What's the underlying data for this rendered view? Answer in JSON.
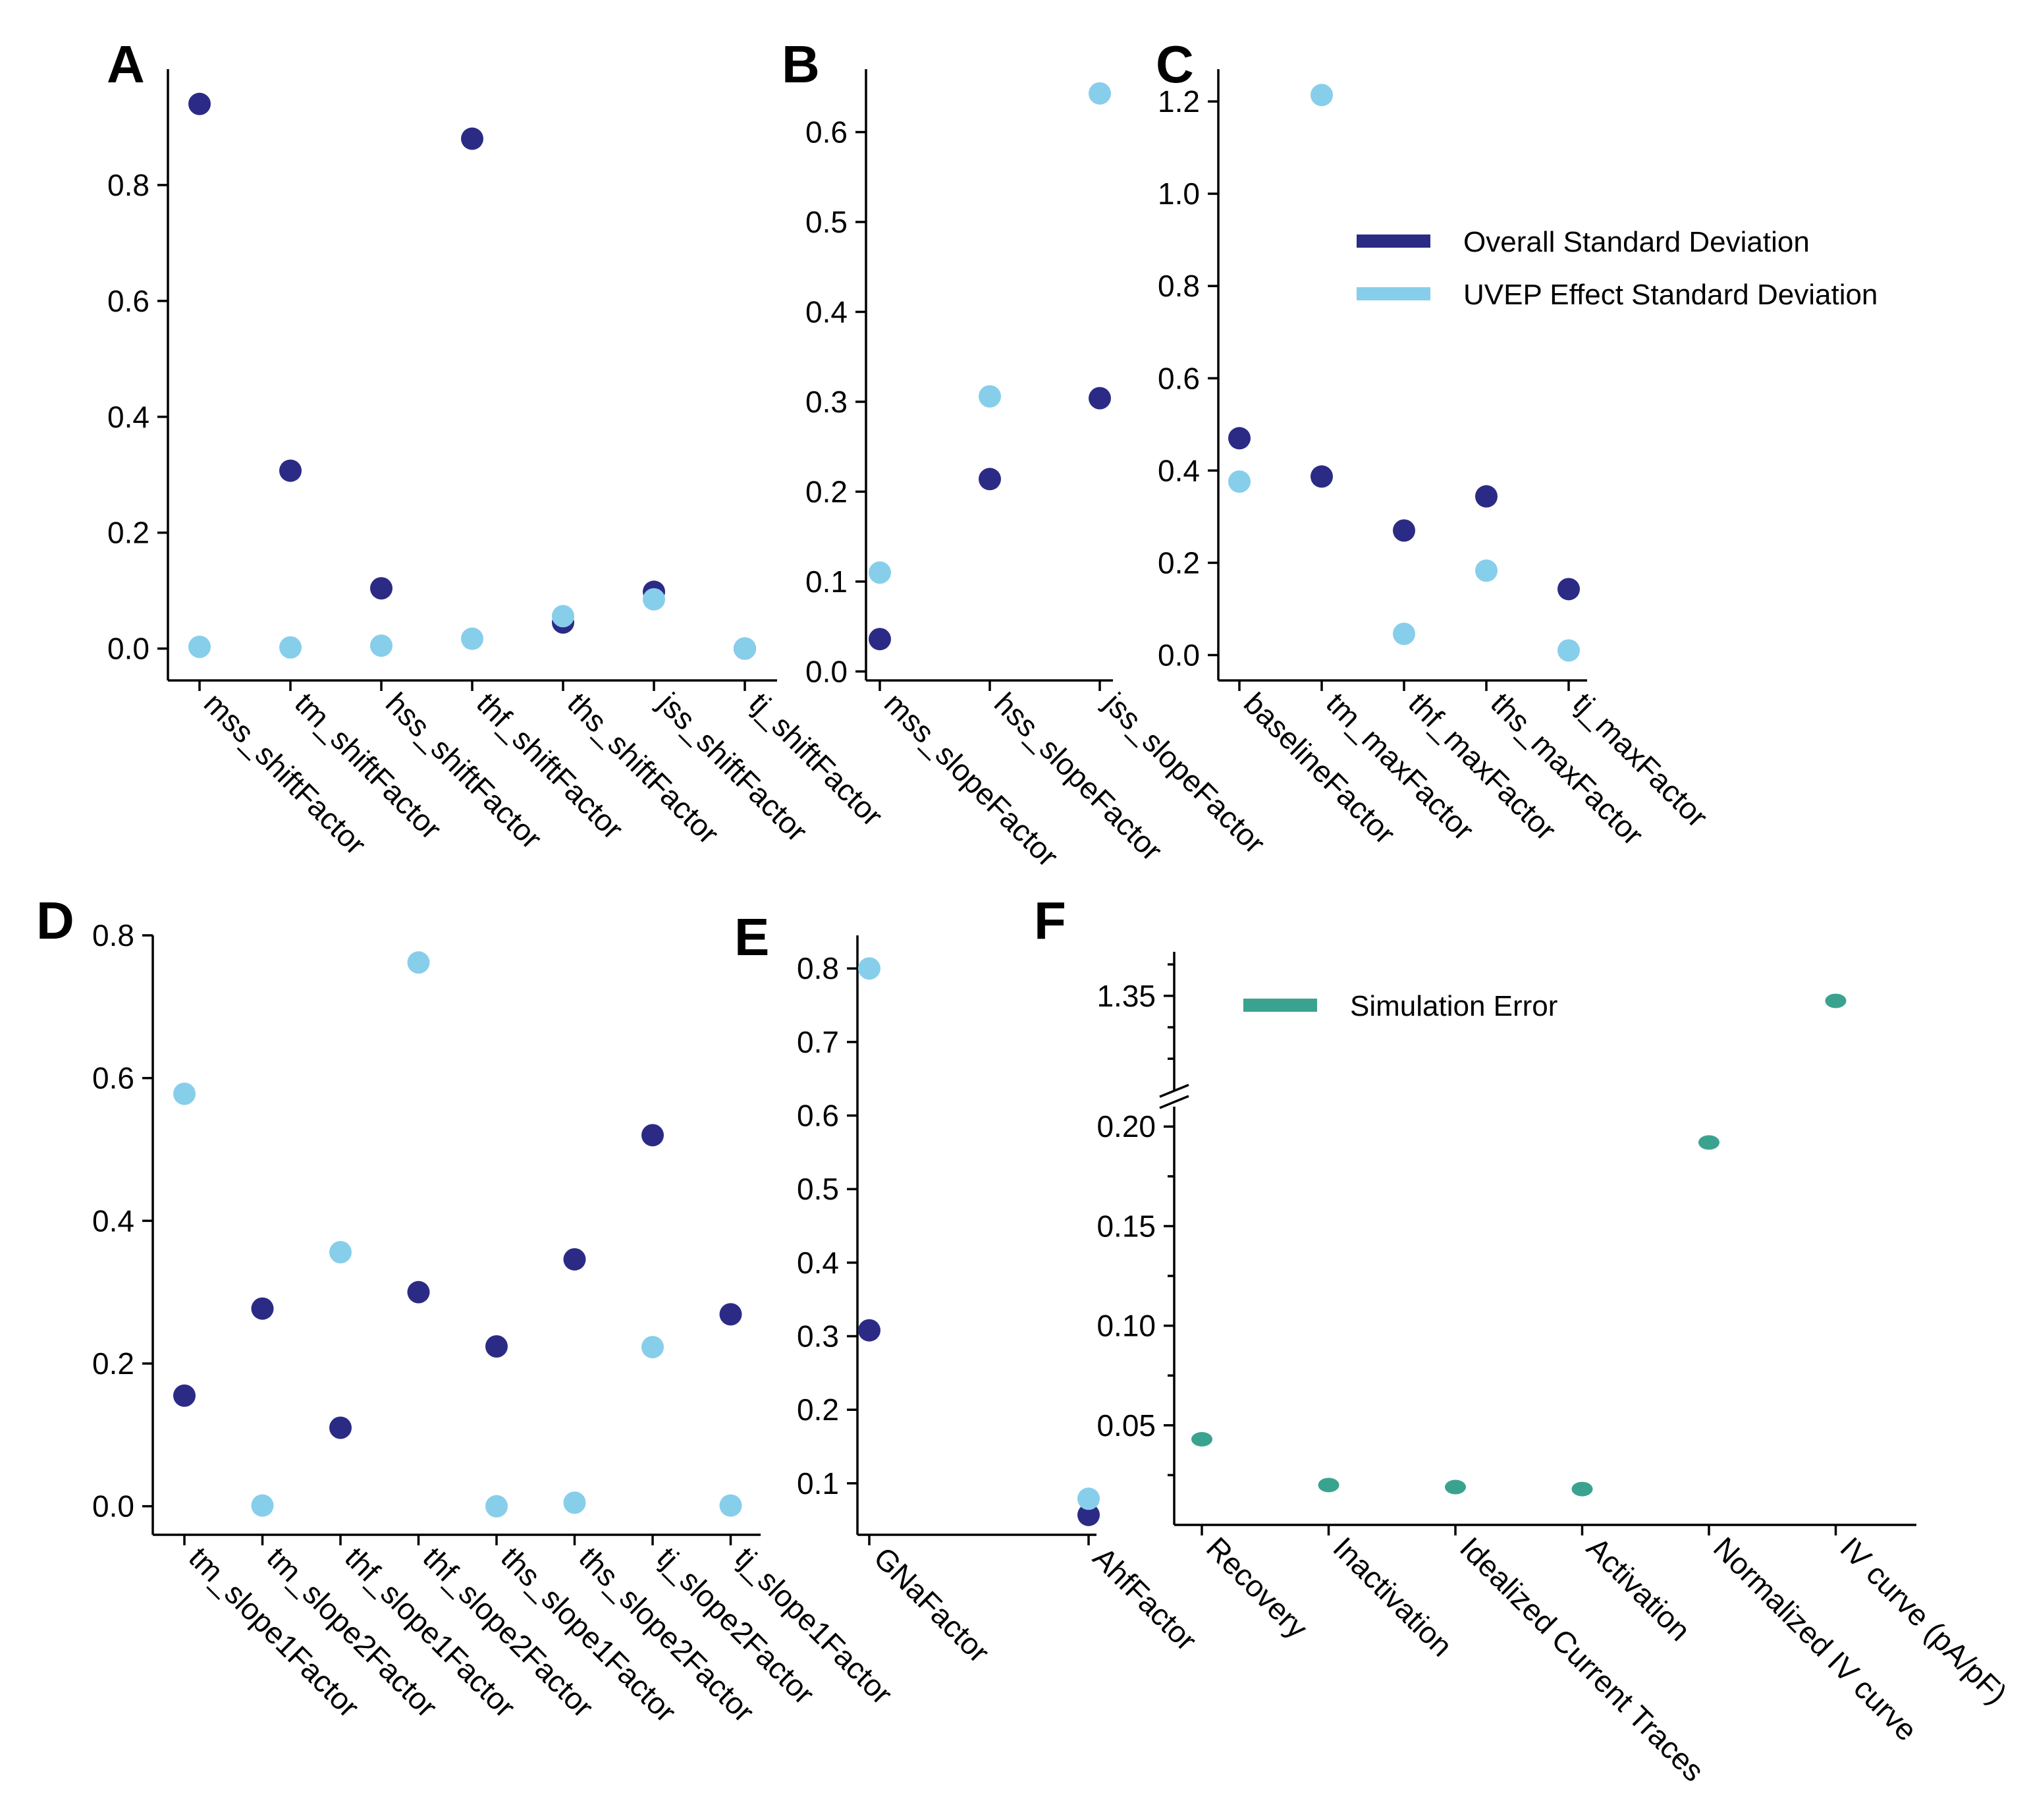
{
  "colors": {
    "overall": "#2b2b86",
    "uvep": "#87ceeb",
    "sim": "#3aa38f"
  },
  "legend_top": {
    "items": [
      {
        "label": "Overall Standard Deviation",
        "color": "#2b2b86"
      },
      {
        "label": "UVEP Effect Standard Deviation",
        "color": "#87ceeb"
      }
    ]
  },
  "legend_f": {
    "items": [
      {
        "label": "Simulation Error",
        "color": "#3aa38f"
      }
    ]
  },
  "chart_data": [
    {
      "panel": "A",
      "type": "scatter",
      "categories": [
        "mss_shiftFactor",
        "tm_shiftFactor",
        "hss_shiftFactor",
        "thf_shiftFactor",
        "ths_shiftFactor",
        "jss_shiftFactor",
        "tj_shiftFactor"
      ],
      "ylim": [
        -0.055,
        1.0
      ],
      "yticks": [
        0.0,
        0.2,
        0.4,
        0.6,
        0.8
      ],
      "tick_labels": [
        "0.0",
        "0.2",
        "0.4",
        "0.6",
        "0.8"
      ],
      "series": [
        {
          "name": "Overall Standard Deviation",
          "values": [
            0.94,
            0.307,
            0.104,
            0.88,
            0.045,
            0.098,
            0.0
          ]
        },
        {
          "name": "UVEP Effect Standard Deviation",
          "values": [
            0.003,
            0.002,
            0.005,
            0.017,
            0.056,
            0.085,
            0.0
          ]
        }
      ]
    },
    {
      "panel": "B",
      "type": "scatter",
      "categories": [
        "mss_slopeFactor",
        "hss_slopeFactor",
        "jss_slopeFactor"
      ],
      "ylim": [
        -0.01,
        0.67
      ],
      "yticks": [
        0.0,
        0.1,
        0.2,
        0.3,
        0.4,
        0.5,
        0.6
      ],
      "tick_labels": [
        "0.0",
        "0.1",
        "0.2",
        "0.3",
        "0.4",
        "0.5",
        "0.6"
      ],
      "series": [
        {
          "name": "Overall Standard Deviation",
          "values": [
            0.036,
            0.214,
            0.304
          ]
        },
        {
          "name": "UVEP Effect Standard Deviation",
          "values": [
            0.11,
            0.306,
            0.643
          ]
        }
      ]
    },
    {
      "panel": "C",
      "type": "scatter",
      "categories": [
        "baselineFactor",
        "tm_maxFactor",
        "thf_maxFactor",
        "ths_maxFactor",
        "tj_maxFactor"
      ],
      "ylim": [
        -0.055,
        1.27
      ],
      "yticks": [
        0.0,
        0.2,
        0.4,
        0.6,
        0.8,
        1.0,
        1.2
      ],
      "tick_labels": [
        "0.0",
        "0.2",
        "0.4",
        "0.6",
        "0.8",
        "1.0",
        "1.2"
      ],
      "series": [
        {
          "name": "Overall Standard Deviation",
          "values": [
            0.47,
            0.387,
            0.27,
            0.344,
            0.143
          ]
        },
        {
          "name": "UVEP Effect Standard Deviation",
          "values": [
            0.376,
            1.214,
            0.046,
            0.183,
            0.01
          ]
        }
      ]
    },
    {
      "panel": "D",
      "type": "scatter",
      "categories": [
        "tm_slope1Factor",
        "tm_slope2Factor",
        "thf_slope1Factor",
        "thf_slope2Factor",
        "ths_slope1Factor",
        "ths_slope2Factor",
        "tj_slope2Factor",
        "tj_slope1Factor"
      ],
      "ylim": [
        -0.04,
        0.8
      ],
      "yticks": [
        0.0,
        0.2,
        0.4,
        0.6,
        0.8
      ],
      "tick_labels": [
        "0.0",
        "0.2",
        "0.4",
        "0.6",
        "0.8"
      ],
      "series": [
        {
          "name": "Overall Standard Deviation",
          "values": [
            0.155,
            0.277,
            0.11,
            0.3,
            0.224,
            0.346,
            0.52,
            0.269
          ]
        },
        {
          "name": "UVEP Effect Standard Deviation",
          "values": [
            0.578,
            0.001,
            0.356,
            0.762,
            0.0,
            0.005,
            0.223,
            0.001
          ]
        }
      ]
    },
    {
      "panel": "E",
      "type": "scatter",
      "categories": [
        "GNaFactor",
        "AhfFactor"
      ],
      "ylim": [
        0.03,
        0.845
      ],
      "yticks": [
        0.1,
        0.2,
        0.3,
        0.4,
        0.5,
        0.6,
        0.7,
        0.8
      ],
      "tick_labels": [
        "0.1",
        "0.2",
        "0.3",
        "0.4",
        "0.5",
        "0.6",
        "0.7",
        "0.8"
      ],
      "series": [
        {
          "name": "Overall Standard Deviation",
          "values": [
            0.308,
            0.057
          ]
        },
        {
          "name": "UVEP Effect Standard Deviation",
          "values": [
            0.8,
            0.079
          ]
        }
      ]
    },
    {
      "panel": "F",
      "type": "scatter",
      "categories": [
        "Recovery",
        "Inactivation",
        "Idealized Current Traces",
        "Activation",
        "Normalized IV curve",
        "IV curve (pA/pF)"
      ],
      "broken_axis": true,
      "lower_ylim": [
        0.0,
        0.21
      ],
      "upper_ylim": [
        1.2,
        1.42
      ],
      "lower_yticks": [
        0.05,
        0.1,
        0.15,
        0.2
      ],
      "lower_tick_labels": [
        "0.05",
        "0.10",
        "0.15",
        "0.20"
      ],
      "upper_yticks": [
        1.35
      ],
      "upper_tick_labels": [
        "1.35"
      ],
      "series": [
        {
          "name": "Simulation Error",
          "values": [
            0.043,
            0.02,
            0.019,
            0.018,
            0.192,
            1.342
          ]
        }
      ]
    }
  ]
}
